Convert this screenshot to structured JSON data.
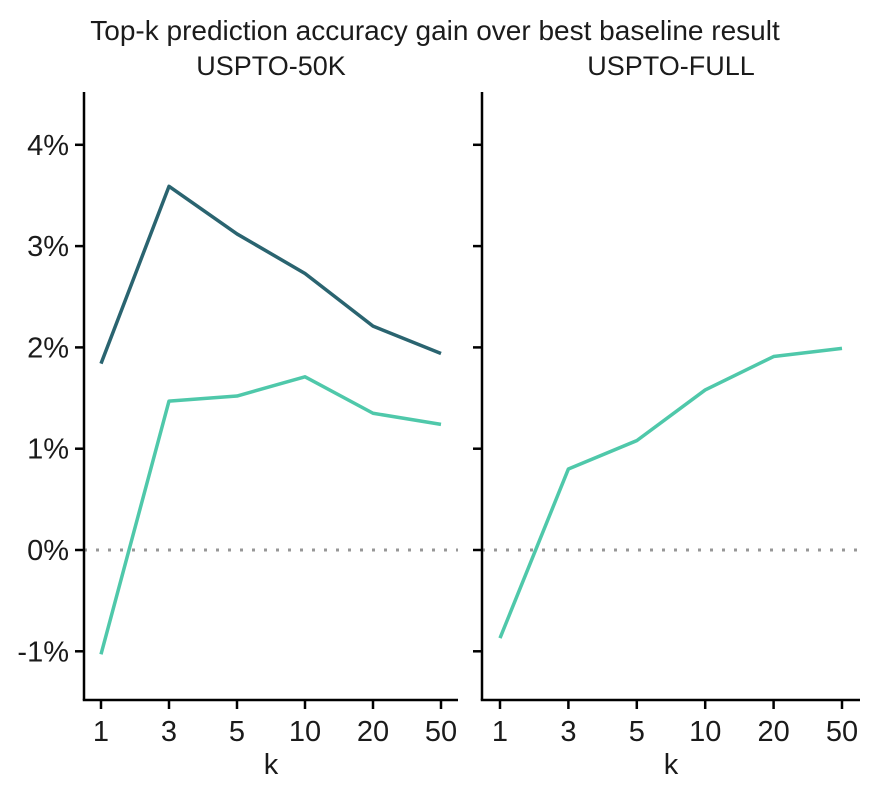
{
  "figure": {
    "title": "Top-k prediction accuracy gain over best baseline result"
  },
  "colors": {
    "dark_series": "#2a6470",
    "teal_series": "#4fc8aa",
    "zero_line": "#979797",
    "axis": "#000000",
    "text": "#1b1b1b"
  },
  "chart_data": [
    {
      "type": "line",
      "title": "USPTO-50K",
      "xlabel": "k",
      "categories": [
        "1",
        "3",
        "5",
        "10",
        "20",
        "50"
      ],
      "x_values": [
        1,
        3,
        5,
        10,
        20,
        50
      ],
      "ylim": [
        -1.5,
        4.5
      ],
      "y_ticks": [
        {
          "value": 4,
          "label": "4%"
        },
        {
          "value": 3,
          "label": "3%"
        },
        {
          "value": 2,
          "label": "2%"
        },
        {
          "value": 1,
          "label": "1%"
        },
        {
          "value": 0,
          "label": "0%"
        },
        {
          "value": -1,
          "label": "-1%"
        }
      ],
      "show_y_tick_labels": true,
      "grid": false,
      "legend": "none",
      "zero_reference_line": 0,
      "series": [
        {
          "name": "dark-teal-line",
          "color_key": "dark_series",
          "values": [
            1.84,
            3.59,
            3.12,
            2.73,
            2.21,
            1.94
          ]
        },
        {
          "name": "light-teal-line",
          "color_key": "teal_series",
          "values": [
            -1.03,
            1.47,
            1.52,
            1.71,
            1.35,
            1.24
          ]
        }
      ]
    },
    {
      "type": "line",
      "title": "USPTO-FULL",
      "xlabel": "k",
      "categories": [
        "1",
        "3",
        "5",
        "10",
        "20",
        "50"
      ],
      "x_values": [
        1,
        3,
        5,
        10,
        20,
        50
      ],
      "ylim": [
        -1.5,
        4.5
      ],
      "y_ticks": [
        {
          "value": 4,
          "label": "4%"
        },
        {
          "value": 3,
          "label": "3%"
        },
        {
          "value": 2,
          "label": "2%"
        },
        {
          "value": 1,
          "label": "1%"
        },
        {
          "value": 0,
          "label": "0%"
        },
        {
          "value": -1,
          "label": "-1%"
        }
      ],
      "show_y_tick_labels": false,
      "grid": false,
      "legend": "none",
      "zero_reference_line": 0,
      "series": [
        {
          "name": "light-teal-line",
          "color_key": "teal_series",
          "values": [
            -0.87,
            0.8,
            1.08,
            1.58,
            1.91,
            1.99
          ]
        }
      ]
    }
  ]
}
